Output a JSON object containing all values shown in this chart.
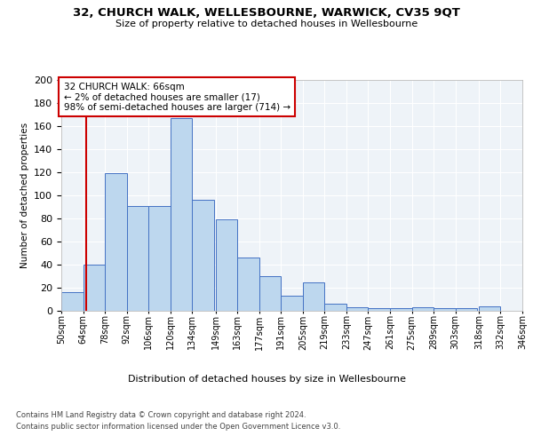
{
  "title": "32, CHURCH WALK, WELLESBOURNE, WARWICK, CV35 9QT",
  "subtitle": "Size of property relative to detached houses in Wellesbourne",
  "xlabel": "Distribution of detached houses by size in Wellesbourne",
  "ylabel": "Number of detached properties",
  "footer1": "Contains HM Land Registry data © Crown copyright and database right 2024.",
  "footer2": "Contains public sector information licensed under the Open Government Licence v3.0.",
  "annotation_title": "32 CHURCH WALK: 66sqm",
  "annotation_line1": "← 2% of detached houses are smaller (17)",
  "annotation_line2": "98% of semi-detached houses are larger (714) →",
  "property_size": 66,
  "bar_bins": [
    50,
    64,
    78,
    92,
    106,
    120,
    134,
    149,
    163,
    177,
    191,
    205,
    219,
    233,
    247,
    261,
    275,
    289,
    303,
    318,
    332
  ],
  "bar_values": [
    16,
    40,
    119,
    91,
    91,
    167,
    96,
    79,
    46,
    30,
    13,
    25,
    6,
    3,
    2,
    2,
    3,
    2,
    2,
    4,
    0
  ],
  "bar_color": "#bdd7ee",
  "bar_edge_color": "#4472c4",
  "vline_color": "#cc0000",
  "vline_x": 66,
  "annotation_box_color": "#cc0000",
  "bg_color": "#eef3f8",
  "grid_color": "#ffffff",
  "ylim": [
    0,
    200
  ],
  "yticks": [
    0,
    20,
    40,
    60,
    80,
    100,
    120,
    140,
    160,
    180,
    200
  ],
  "fig_width": 6.0,
  "fig_height": 5.0,
  "dpi": 100
}
